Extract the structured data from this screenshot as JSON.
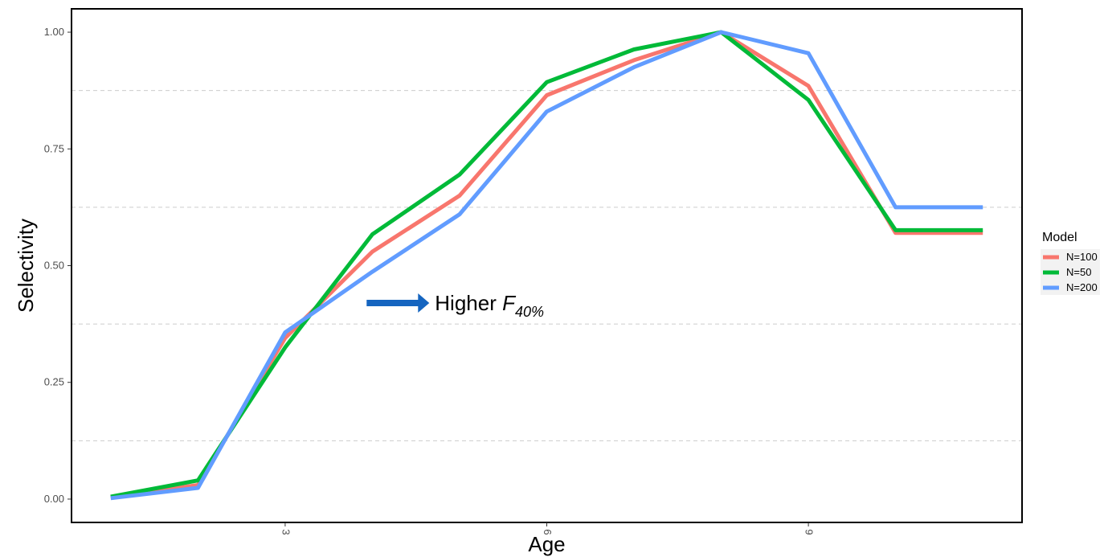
{
  "chart_data": {
    "type": "line",
    "title": "",
    "xlabel": "Age",
    "ylabel": "Selectivity",
    "x": [
      1,
      2,
      3,
      4,
      5,
      6,
      7,
      8,
      9,
      10,
      11
    ],
    "xlim": [
      0.55,
      11.45
    ],
    "ylim": [
      -0.05,
      1.05
    ],
    "x_ticks": [
      3,
      6,
      9
    ],
    "x_tick_labels": [
      "3",
      "6",
      "9"
    ],
    "y_ticks": [
      0,
      0.25,
      0.5,
      0.75,
      1.0
    ],
    "y_tick_labels": [
      "0.00",
      "0.25",
      "0.50",
      "0.75",
      "1.00"
    ],
    "grid": "minor y dashed",
    "legend": {
      "title": "Model",
      "placement": "right"
    },
    "series": [
      {
        "name": "N=100",
        "color": "#F8766D",
        "values": [
          0.004,
          0.03,
          0.345,
          0.53,
          0.65,
          0.865,
          0.94,
          1.0,
          0.885,
          0.57,
          0.57
        ]
      },
      {
        "name": "N=50",
        "color": "#00BA38",
        "values": [
          0.005,
          0.04,
          0.325,
          0.567,
          0.695,
          0.893,
          0.963,
          1.0,
          0.855,
          0.576,
          0.576
        ]
      },
      {
        "name": "N=200",
        "color": "#619CFF",
        "values": [
          0.002,
          0.024,
          0.357,
          0.487,
          0.61,
          0.83,
          0.925,
          1.0,
          0.955,
          0.625,
          0.625
        ]
      }
    ],
    "annotation": {
      "text": "Higher ",
      "f_symbol": "F",
      "f_subscript": "40%",
      "x": 4.1,
      "y": 0.42
    }
  }
}
